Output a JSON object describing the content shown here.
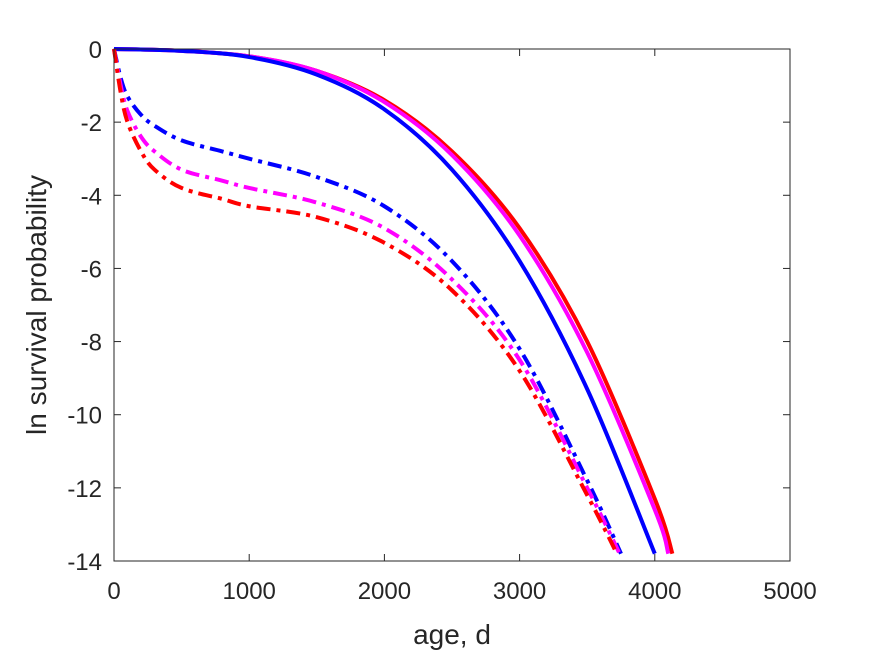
{
  "chart_data": {
    "type": "line",
    "title": "",
    "xlabel": "age, d",
    "ylabel": "ln survival probability",
    "xlim": [
      0,
      5000
    ],
    "ylim": [
      -14,
      0
    ],
    "xticks": [
      0,
      1000,
      2000,
      3000,
      4000,
      5000
    ],
    "yticks": [
      0,
      -2,
      -4,
      -6,
      -8,
      -10,
      -12,
      -14
    ],
    "xtick_labels": [
      "0",
      "1000",
      "2000",
      "3000",
      "4000",
      "5000"
    ],
    "ytick_labels": [
      "0",
      "-2",
      "-4",
      "-6",
      "-8",
      "-10",
      "-12",
      "-14"
    ],
    "grid": false,
    "legend": "none",
    "series": [
      {
        "style": "solid",
        "color": "#ff0000",
        "x": [
          0,
          500,
          1000,
          1500,
          2000,
          2500,
          3000,
          3500,
          4000,
          4130
        ],
        "y": [
          0,
          -0.05,
          -0.2,
          -0.6,
          -1.4,
          -2.8,
          -4.9,
          -8.0,
          -12.3,
          -13.8
        ]
      },
      {
        "style": "solid",
        "color": "#ff00ff",
        "x": [
          0,
          500,
          1000,
          1500,
          2000,
          2500,
          3000,
          3500,
          4000,
          4100
        ],
        "y": [
          0,
          -0.05,
          -0.2,
          -0.6,
          -1.45,
          -2.9,
          -5.1,
          -8.3,
          -12.6,
          -13.8
        ]
      },
      {
        "style": "solid",
        "color": "#0000ff",
        "x": [
          0,
          500,
          1000,
          1500,
          2000,
          2500,
          3000,
          3500,
          4000
        ],
        "y": [
          0,
          -0.05,
          -0.22,
          -0.7,
          -1.65,
          -3.3,
          -5.8,
          -9.3,
          -13.8
        ]
      },
      {
        "style": "dashdot",
        "color": "#0000ff",
        "x": [
          0,
          50,
          100,
          200,
          300,
          500,
          800,
          1000,
          1500,
          2000,
          2500,
          3000,
          3500,
          3750
        ],
        "y": [
          0,
          -0.8,
          -1.3,
          -1.8,
          -2.1,
          -2.5,
          -2.8,
          -3.0,
          -3.5,
          -4.3,
          -5.8,
          -8.2,
          -11.8,
          -13.8
        ]
      },
      {
        "style": "dashdot",
        "color": "#ff00ff",
        "x": [
          0,
          50,
          100,
          200,
          300,
          500,
          800,
          1000,
          1500,
          2000,
          2500,
          3000,
          3500,
          3740
        ],
        "y": [
          0,
          -1.0,
          -1.7,
          -2.4,
          -2.8,
          -3.3,
          -3.6,
          -3.8,
          -4.2,
          -4.9,
          -6.3,
          -8.5,
          -12.0,
          -13.8
        ]
      },
      {
        "style": "dashdot",
        "color": "#ff0000",
        "x": [
          0,
          50,
          100,
          200,
          300,
          500,
          800,
          1000,
          1500,
          2000,
          2500,
          3000,
          3500,
          3720
        ],
        "y": [
          0,
          -1.2,
          -2.0,
          -2.8,
          -3.3,
          -3.8,
          -4.1,
          -4.3,
          -4.6,
          -5.3,
          -6.6,
          -8.8,
          -12.2,
          -13.8
        ]
      }
    ]
  }
}
